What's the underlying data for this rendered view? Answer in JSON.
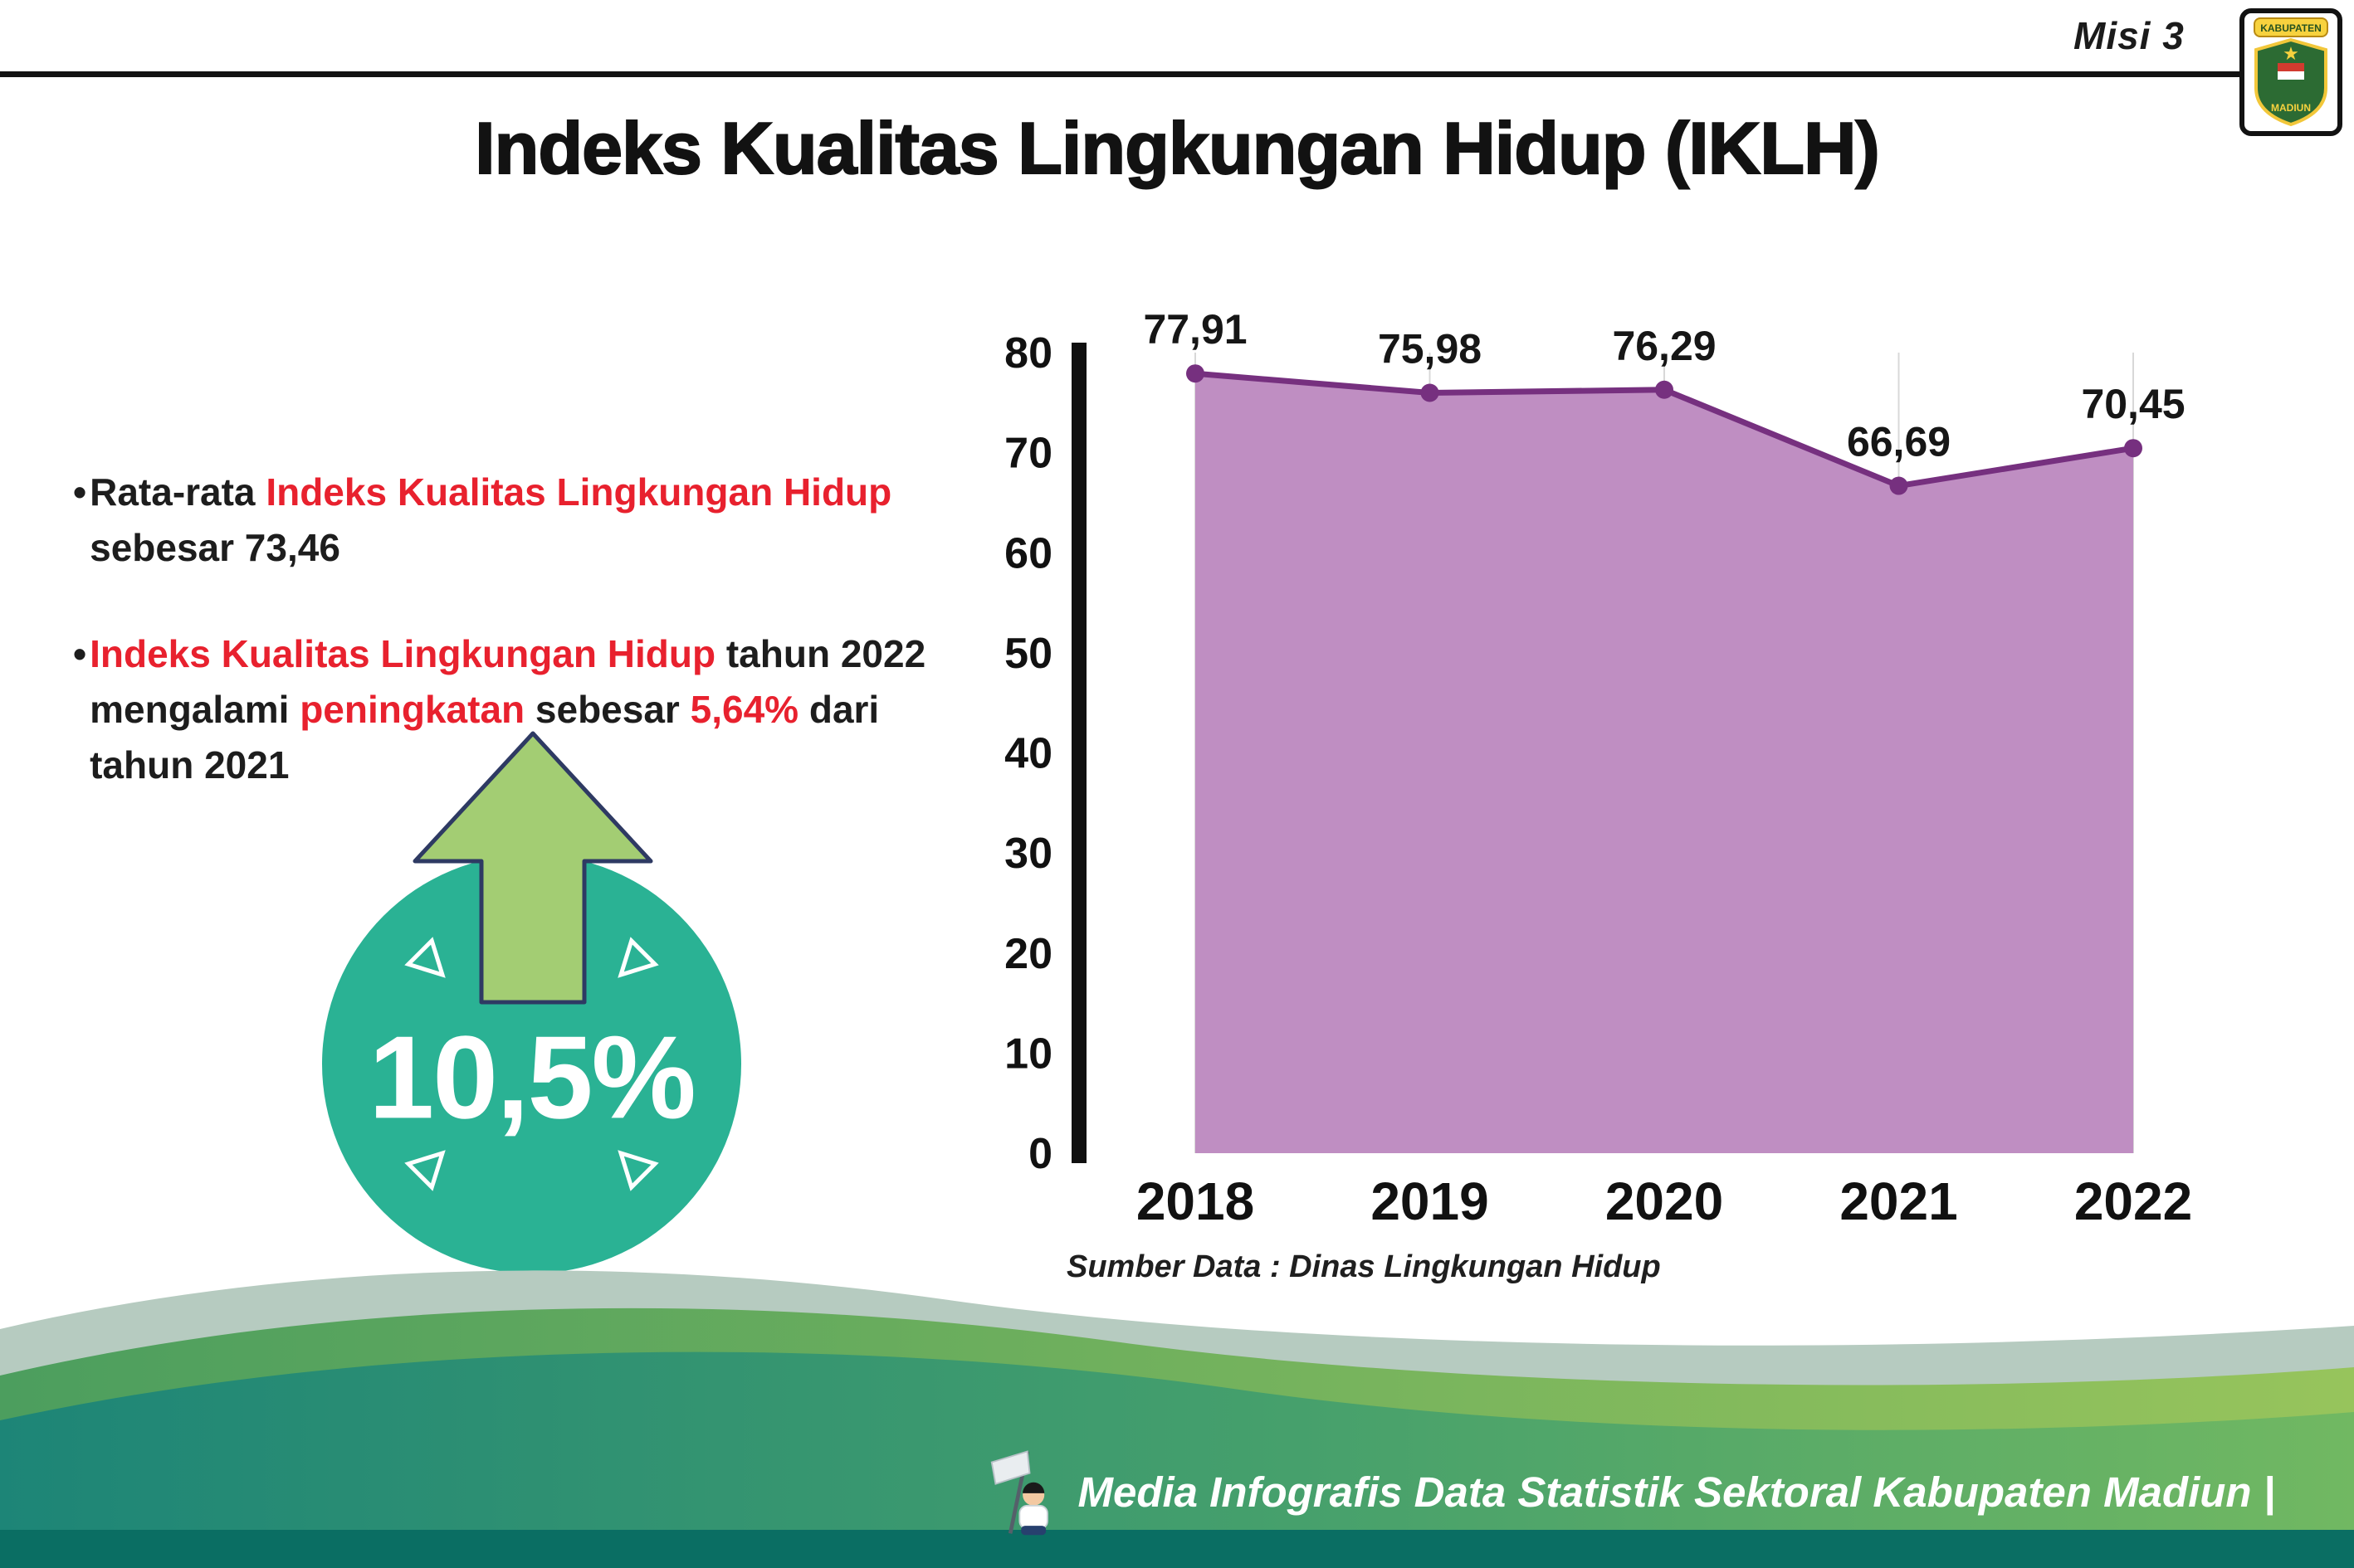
{
  "page": {
    "misi_label": "Misi 3",
    "title": "Indeks Kualitas Lingkungan Hidup (IKLH)"
  },
  "logo": {
    "top_text": "KABUPATEN",
    "bottom_text": "MADIUN"
  },
  "bullets": {
    "marker": "•",
    "b1": {
      "segments": [
        {
          "text": "Rata-rata ",
          "color": "#1d1d1d"
        },
        {
          "text": "Indeks Kualitas Lingkungan Hidup",
          "color": "#e8212e"
        },
        {
          "text": " sebesar 73,46",
          "color": "#1d1d1d"
        }
      ]
    },
    "b2": {
      "segments": [
        {
          "text": "Indeks Kualitas Lingkungan Hidup",
          "color": "#e8212e"
        },
        {
          "text": " tahun 2022 mengalami ",
          "color": "#1d1d1d"
        },
        {
          "text": "peningkatan",
          "color": "#e8212e"
        },
        {
          "text": " sebesar ",
          "color": "#1d1d1d"
        },
        {
          "text": "5,64%",
          "color": "#e8212e"
        },
        {
          "text": " dari tahun 2021",
          "color": "#1d1d1d"
        }
      ]
    }
  },
  "badge": {
    "value": "10,5%",
    "circle_color": "#2ab294",
    "arrow_color": "#a3cd73"
  },
  "chart_data": {
    "type": "area",
    "title": "Indeks Kualitas Lingkungan Hidup (IKLH)",
    "categories": [
      "2018",
      "2019",
      "2020",
      "2021",
      "2022"
    ],
    "values": [
      77.91,
      75.98,
      76.29,
      66.69,
      70.45
    ],
    "point_labels": [
      "77,91",
      "75,98",
      "76,29",
      "66,69",
      "70,45"
    ],
    "ylim": [
      0,
      80
    ],
    "ytick_step": 10,
    "grid": "vertical-light",
    "legend": "none",
    "fill_color": "#bf8ec2",
    "line_color": "#76307f",
    "source_note": "Sumber Data : Dinas Lingkungan Hidup"
  },
  "footer": {
    "text": "Media Infografis Data Statistik Sektoral Kabupaten Madiun |"
  }
}
